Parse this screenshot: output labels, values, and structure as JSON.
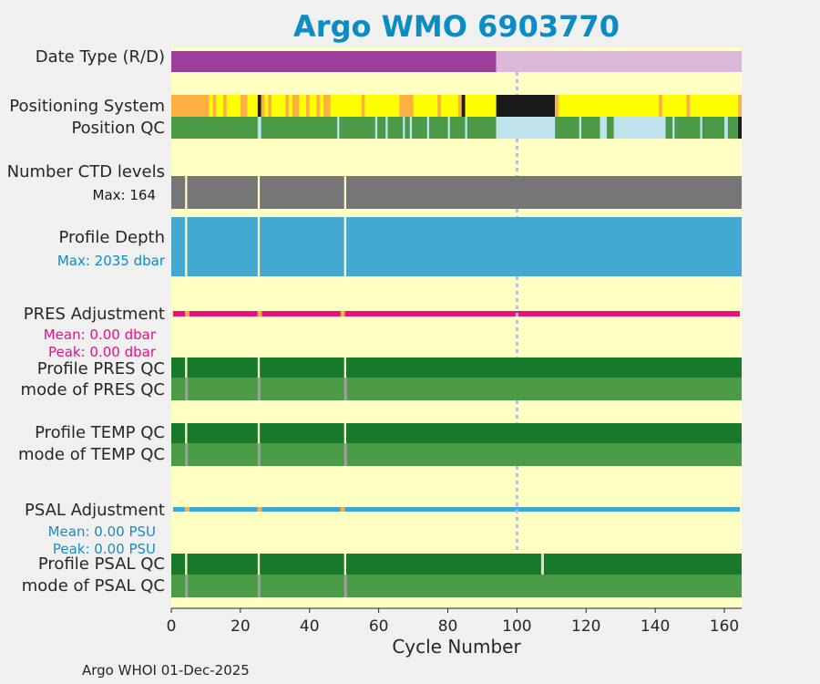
{
  "title": "Argo WMO 6903770",
  "footer": "Argo WHOI 01-Dec-2025",
  "colors": {
    "background": "#ffffc4",
    "title": "#0a8cc4",
    "delayed_mode": "#9c3f9b",
    "realtime_mode": "#dbb7da",
    "argos": "#feb042",
    "gps": "#ffff00",
    "unknown_position": "#1a1a1a",
    "qc_good": "#4a9a48",
    "qc_missing": "#bfe3ed",
    "qc_bad": "#1a1a1a",
    "ctd_levels": "#767676",
    "depth": "#43a9d0",
    "pres_adj": "#e8117e",
    "psal_adj": "#3aa9d6",
    "profile_qc_good": "#177a2b",
    "mode_qc": "#4b9b47",
    "gap": "#a0a0a0",
    "vline": "#b8bed9"
  },
  "chart_data": {
    "type": "heatmap",
    "xlabel": "Cycle Number",
    "xlim": [
      0,
      165
    ],
    "xticks": [
      0,
      20,
      40,
      60,
      80,
      100,
      120,
      140,
      160
    ],
    "vline_x": 100,
    "rows": [
      {
        "key": "date_type",
        "label": "Date Type (R/D)",
        "segments": [
          [
            0,
            94,
            "delayed_mode"
          ],
          [
            94,
            165,
            "realtime_mode"
          ]
        ]
      },
      {
        "key": "positioning",
        "label": "Positioning System",
        "segments": [
          [
            0,
            11,
            "argos"
          ],
          [
            11,
            94,
            "gps"
          ],
          [
            12,
            13,
            "argos"
          ],
          [
            15,
            16,
            "argos"
          ],
          [
            20,
            22,
            "argos"
          ],
          [
            25,
            26,
            "unknown_position"
          ],
          [
            26,
            27,
            "argos"
          ],
          [
            28,
            29,
            "argos"
          ],
          [
            33,
            34,
            "argos"
          ],
          [
            35,
            37,
            "argos"
          ],
          [
            39,
            40,
            "argos"
          ],
          [
            42,
            43,
            "argos"
          ],
          [
            44,
            46,
            "argos"
          ],
          [
            55,
            56,
            "argos"
          ],
          [
            66,
            70,
            "argos"
          ],
          [
            77,
            78,
            "argos"
          ],
          [
            83,
            84,
            "argos"
          ],
          [
            84,
            85,
            "unknown_position"
          ],
          [
            94,
            111,
            "unknown_position"
          ],
          [
            111,
            165,
            "gps"
          ],
          [
            111,
            112,
            "argos"
          ],
          [
            141,
            142,
            "argos"
          ],
          [
            149,
            150,
            "argos"
          ],
          [
            164,
            165,
            "argos"
          ]
        ]
      },
      {
        "key": "position_qc",
        "label": "Position QC",
        "segments": [
          [
            0,
            94,
            "qc_good"
          ],
          [
            25,
            26,
            "qc_missing"
          ],
          [
            48,
            48.6,
            "qc_missing"
          ],
          [
            59,
            59.6,
            "qc_missing"
          ],
          [
            62,
            62.6,
            "qc_missing"
          ],
          [
            67,
            67.6,
            "qc_missing"
          ],
          [
            69,
            69.6,
            "qc_missing"
          ],
          [
            74,
            74.6,
            "qc_missing"
          ],
          [
            80,
            80.6,
            "qc_missing"
          ],
          [
            85,
            85.6,
            "qc_missing"
          ],
          [
            94,
            111,
            "qc_missing"
          ],
          [
            111,
            165,
            "qc_good"
          ],
          [
            118,
            118.6,
            "qc_missing"
          ],
          [
            124,
            126,
            "qc_missing"
          ],
          [
            128,
            143,
            "qc_missing"
          ],
          [
            145,
            145.6,
            "qc_missing"
          ],
          [
            153,
            153.6,
            "qc_missing"
          ],
          [
            160,
            161,
            "qc_missing"
          ],
          [
            164,
            165,
            "qc_bad"
          ]
        ]
      },
      {
        "key": "ctd_levels",
        "label": "Number CTD levels",
        "sub": "Max: 164",
        "max": 164
      },
      {
        "key": "depth",
        "label": "Profile Depth",
        "sub": "Max: 2035 dbar",
        "max": 2035
      },
      {
        "key": "pres_adj",
        "label": "PRES Adjustment",
        "sub1": "Mean: 0.00 dbar",
        "sub2": "Peak: 0.00 dbar"
      },
      {
        "key": "pres_qc",
        "label": "Profile PRES QC",
        "label2": "mode of PRES QC"
      },
      {
        "key": "temp_qc",
        "label": "Profile TEMP QC",
        "label2": "mode of TEMP QC"
      },
      {
        "key": "psal_adj",
        "label": "PSAL Adjustment",
        "sub1": "Mean: 0.00 PSU",
        "sub2": "Peak: 0.00 PSU"
      },
      {
        "key": "psal_qc",
        "label": "Profile PSAL QC",
        "label2": "mode of PSAL QC",
        "extra_gap": 107
      }
    ],
    "missing_cycles": [
      4,
      25,
      50
    ]
  }
}
